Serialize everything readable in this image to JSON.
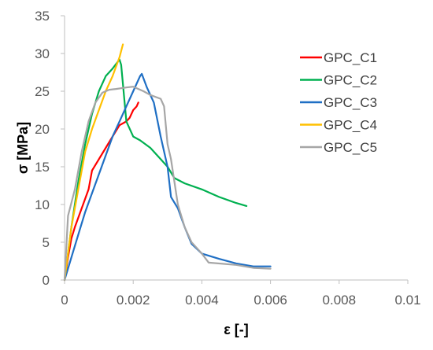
{
  "chart_data": {
    "type": "line",
    "xlabel": "ε [-]",
    "ylabel": "σ [MPa]",
    "xlim": [
      0,
      0.01
    ],
    "ylim": [
      0,
      35
    ],
    "x_ticks": [
      "0",
      "0.002",
      "0.004",
      "0.006",
      "0.008",
      "0.01"
    ],
    "y_ticks": [
      "0",
      "5",
      "10",
      "15",
      "20",
      "25",
      "30",
      "35"
    ],
    "grid": false,
    "legend_position": "right",
    "series": [
      {
        "name": "GPC_C1",
        "color": "#ff0000",
        "points": [
          [
            0,
            0
          ],
          [
            0.0001,
            3
          ],
          [
            0.0002,
            5.5
          ],
          [
            0.0003,
            7
          ],
          [
            0.0005,
            9.5
          ],
          [
            0.0007,
            12
          ],
          [
            0.0008,
            14.5
          ],
          [
            0.001,
            16
          ],
          [
            0.0012,
            17.5
          ],
          [
            0.0014,
            19
          ],
          [
            0.0016,
            20.5
          ],
          [
            0.0018,
            21
          ],
          [
            0.0019,
            21.5
          ],
          [
            0.002,
            22.5
          ],
          [
            0.0021,
            23
          ],
          [
            0.00215,
            23.5
          ]
        ]
      },
      {
        "name": "GPC_C2",
        "color": "#00b050",
        "points": [
          [
            0,
            0
          ],
          [
            0.0002,
            7
          ],
          [
            0.0004,
            13
          ],
          [
            0.0006,
            18
          ],
          [
            0.0008,
            22
          ],
          [
            0.001,
            25
          ],
          [
            0.0012,
            27
          ],
          [
            0.0014,
            28
          ],
          [
            0.0016,
            29.2
          ],
          [
            0.00165,
            28.5
          ],
          [
            0.0017,
            26
          ],
          [
            0.0018,
            21
          ],
          [
            0.002,
            19
          ],
          [
            0.0022,
            18.5
          ],
          [
            0.0025,
            17.5
          ],
          [
            0.0028,
            16
          ],
          [
            0.003,
            15
          ],
          [
            0.0032,
            13.5
          ],
          [
            0.0035,
            12.8
          ],
          [
            0.004,
            12
          ],
          [
            0.0045,
            11
          ],
          [
            0.005,
            10.2
          ],
          [
            0.0053,
            9.8
          ]
        ]
      },
      {
        "name": "GPC_C3",
        "color": "#1f6fc4",
        "points": [
          [
            0,
            0
          ],
          [
            0.0002,
            3
          ],
          [
            0.0004,
            6
          ],
          [
            0.0006,
            9
          ],
          [
            0.0008,
            11.5
          ],
          [
            0.001,
            14
          ],
          [
            0.0012,
            16.5
          ],
          [
            0.0014,
            19
          ],
          [
            0.0016,
            21
          ],
          [
            0.0018,
            23
          ],
          [
            0.002,
            25
          ],
          [
            0.0022,
            27
          ],
          [
            0.00225,
            27.3
          ],
          [
            0.0024,
            25.5
          ],
          [
            0.0026,
            23.5
          ],
          [
            0.0028,
            19
          ],
          [
            0.003,
            15
          ],
          [
            0.0031,
            11
          ],
          [
            0.0033,
            9.5
          ],
          [
            0.0035,
            7
          ],
          [
            0.0037,
            4.8
          ],
          [
            0.004,
            3.5
          ],
          [
            0.0045,
            2.8
          ],
          [
            0.005,
            2.2
          ],
          [
            0.0055,
            1.8
          ],
          [
            0.006,
            1.8
          ]
        ]
      },
      {
        "name": "GPC_C4",
        "color": "#ffc000",
        "points": [
          [
            0,
            0
          ],
          [
            0.0002,
            7
          ],
          [
            0.0004,
            12
          ],
          [
            0.0006,
            17
          ],
          [
            0.0008,
            20
          ],
          [
            0.001,
            22.5
          ],
          [
            0.0012,
            25
          ],
          [
            0.0014,
            27
          ],
          [
            0.0016,
            29.5
          ],
          [
            0.0017,
            31.2
          ]
        ]
      },
      {
        "name": "GPC_C5",
        "color": "#a6a6a6",
        "points": [
          [
            0,
            0
          ],
          [
            0.0001,
            8.5
          ],
          [
            0.0003,
            12
          ],
          [
            0.0005,
            17
          ],
          [
            0.0007,
            21
          ],
          [
            0.0009,
            23.5
          ],
          [
            0.0011,
            24.8
          ],
          [
            0.0013,
            25.2
          ],
          [
            0.0015,
            25.3
          ],
          [
            0.0018,
            25.5
          ],
          [
            0.002,
            25.6
          ],
          [
            0.0023,
            25
          ],
          [
            0.0025,
            24.5
          ],
          [
            0.0028,
            24
          ],
          [
            0.0029,
            23
          ],
          [
            0.003,
            18
          ],
          [
            0.0031,
            16
          ],
          [
            0.0033,
            10
          ],
          [
            0.0035,
            7
          ],
          [
            0.0037,
            5
          ],
          [
            0.004,
            3.5
          ],
          [
            0.0042,
            2.3
          ],
          [
            0.005,
            2
          ],
          [
            0.0055,
            1.6
          ],
          [
            0.006,
            1.5
          ]
        ]
      }
    ]
  }
}
